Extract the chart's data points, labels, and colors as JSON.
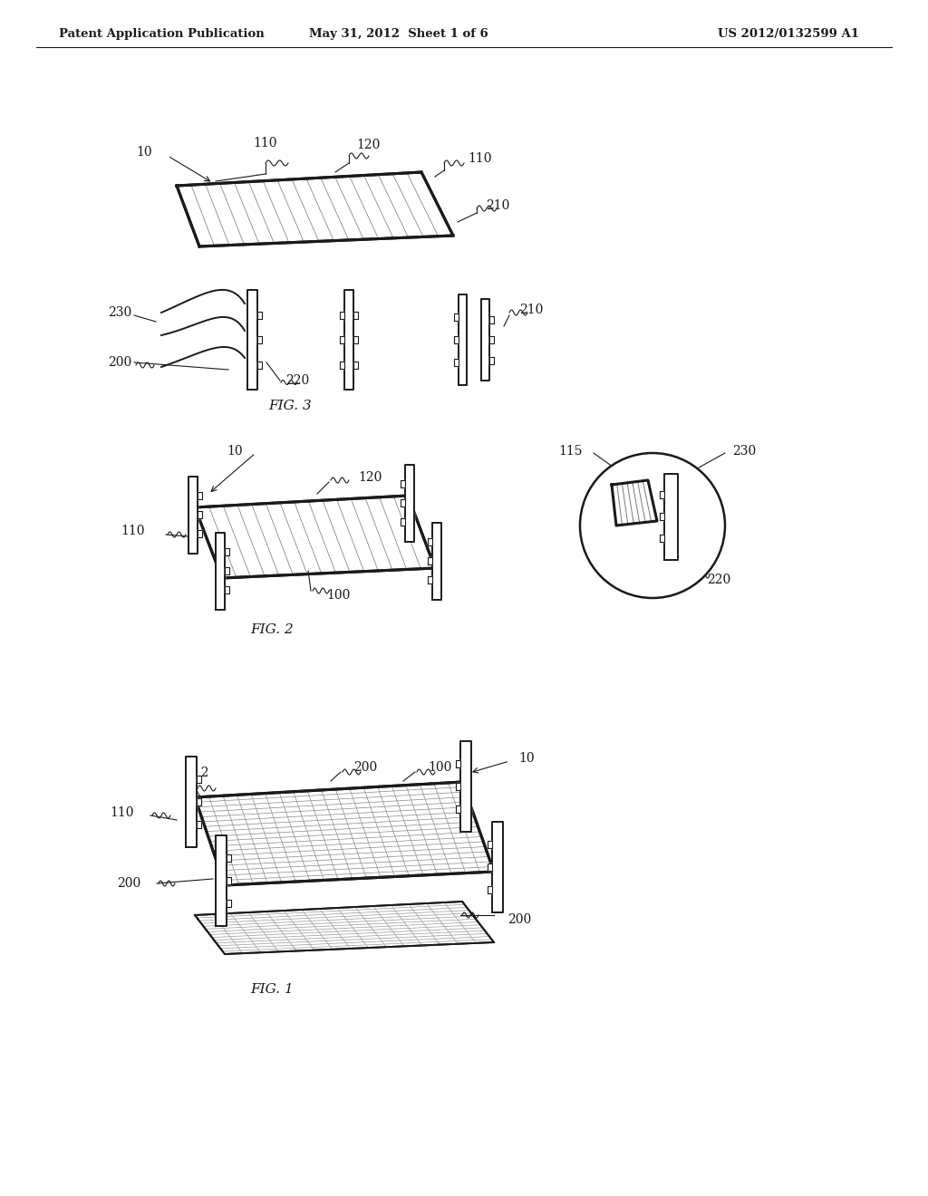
{
  "bg_color": "#ffffff",
  "line_color": "#1a1a1a",
  "header_left": "Patent Application Publication",
  "header_mid": "May 31, 2012  Sheet 1 of 6",
  "header_right": "US 2012/0132599 A1",
  "fig1_label": "FIG. 1",
  "fig2_label": "FIG. 2",
  "fig3_label": "FIG. 3"
}
